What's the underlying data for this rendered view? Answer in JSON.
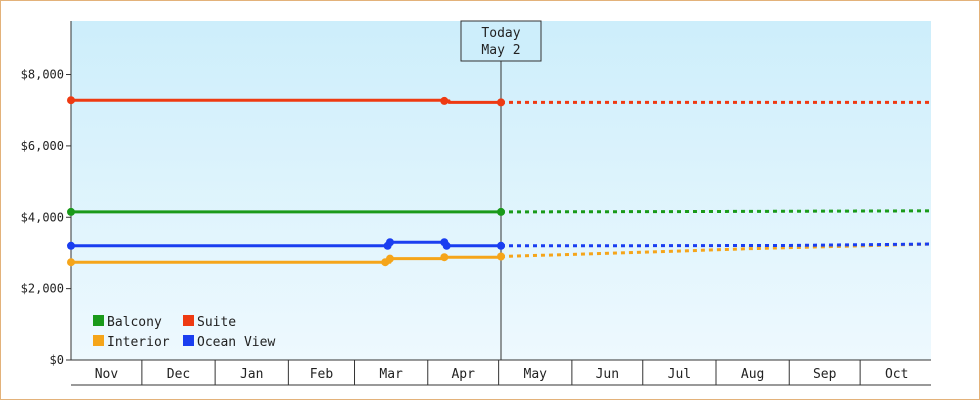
{
  "chart_data": {
    "type": "line",
    "title": "",
    "xlabel": "",
    "ylabel": "",
    "ylim": [
      0,
      9500
    ],
    "y_ticks": [
      {
        "value": 0,
        "label": "$0"
      },
      {
        "value": 2000,
        "label": "$2,000"
      },
      {
        "value": 4000,
        "label": "$4,000"
      },
      {
        "value": 6000,
        "label": "$6,000"
      },
      {
        "value": 8000,
        "label": "$8,000"
      }
    ],
    "months": [
      "Nov",
      "Dec",
      "Jan",
      "Feb",
      "Mar",
      "Apr",
      "May",
      "Jun",
      "Jul",
      "Aug",
      "Sep",
      "Oct"
    ],
    "x_start": "Nov 1",
    "x_end": "Oct 31",
    "today": {
      "line1": "Today",
      "line2": "May 2",
      "x": "May 2"
    },
    "legend": {
      "placement": "bottom-left"
    },
    "background": {
      "top": "#cdeefb",
      "bottom": "#eef9fe"
    },
    "grid": false,
    "series": [
      {
        "name": "Balcony",
        "color": "#1a9a1a",
        "legend_col": 0,
        "legend_row": 0,
        "actual": [
          {
            "x": "Nov 1",
            "y": 4150,
            "marker": true
          },
          {
            "x": "May 2",
            "y": 4150,
            "marker": true
          }
        ],
        "projected": [
          {
            "x": "May 2",
            "y": 4150
          },
          {
            "x": "Jul 20",
            "y": 4160
          },
          {
            "x": "Oct 31",
            "y": 4180
          }
        ]
      },
      {
        "name": "Suite",
        "color": "#ee3a12",
        "legend_col": 1,
        "legend_row": 0,
        "actual": [
          {
            "x": "Nov 1",
            "y": 7280,
            "marker": true
          },
          {
            "x": "Apr 8",
            "y": 7260,
            "marker": true
          },
          {
            "x": "Apr 10",
            "y": 7220,
            "marker": false
          },
          {
            "x": "May 2",
            "y": 7220,
            "marker": true
          }
        ],
        "projected": [
          {
            "x": "May 2",
            "y": 7220
          },
          {
            "x": "Oct 31",
            "y": 7220
          }
        ]
      },
      {
        "name": "Interior",
        "color": "#f5a51a",
        "legend_col": 0,
        "legend_row": 1,
        "actual": [
          {
            "x": "Nov 1",
            "y": 2740,
            "marker": true
          },
          {
            "x": "Mar 14",
            "y": 2740,
            "marker": true
          },
          {
            "x": "Mar 16",
            "y": 2840,
            "marker": true
          },
          {
            "x": "Apr 7",
            "y": 2850,
            "marker": false
          },
          {
            "x": "Apr 8",
            "y": 2880,
            "marker": true
          },
          {
            "x": "May 2",
            "y": 2900,
            "marker": true
          }
        ],
        "projected": [
          {
            "x": "May 2",
            "y": 2900
          },
          {
            "x": "Jun 1",
            "y": 2960
          },
          {
            "x": "Jul 15",
            "y": 3050
          },
          {
            "x": "Aug 15",
            "y": 3120
          },
          {
            "x": "Oct 31",
            "y": 3250
          }
        ]
      },
      {
        "name": "Ocean View",
        "color": "#1a3ef0",
        "legend_col": 1,
        "legend_row": 1,
        "actual": [
          {
            "x": "Nov 1",
            "y": 3200,
            "marker": true
          },
          {
            "x": "Mar 15",
            "y": 3200,
            "marker": true
          },
          {
            "x": "Mar 16",
            "y": 3300,
            "marker": true
          },
          {
            "x": "Apr 8",
            "y": 3300,
            "marker": true
          },
          {
            "x": "Apr 9",
            "y": 3200,
            "marker": true
          },
          {
            "x": "May 2",
            "y": 3200,
            "marker": true
          }
        ],
        "projected": [
          {
            "x": "May 2",
            "y": 3200
          },
          {
            "x": "Jun 1",
            "y": 3200
          },
          {
            "x": "Sep 1",
            "y": 3210
          },
          {
            "x": "Oct 31",
            "y": 3250
          }
        ]
      }
    ]
  }
}
